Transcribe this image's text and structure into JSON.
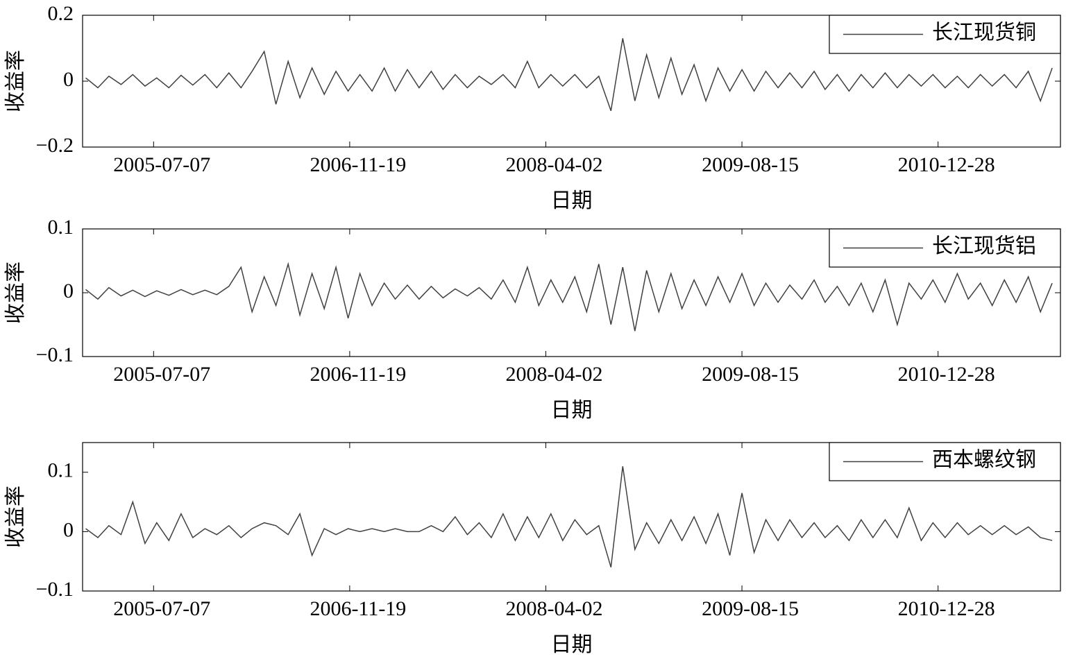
{
  "chart_data": [
    {
      "type": "line",
      "xlabel": "日期",
      "ylabel": "收益率",
      "legend": "upper right",
      "xlim": [
        "2005-01-07",
        "2011-11-05"
      ],
      "xticks": [
        "2005-07-07",
        "2006-11-19",
        "2008-04-02",
        "2009-08-15",
        "2010-12-28"
      ],
      "ylim": [
        -0.2,
        0.2
      ],
      "yticks": [
        {
          "value": -0.2,
          "label": "−0.2"
        },
        0,
        0.2
      ],
      "x": [
        "2005-01-15",
        "2005-02-15",
        "2005-03-15",
        "2005-04-15",
        "2005-05-15",
        "2005-06-15",
        "2005-07-15",
        "2005-08-15",
        "2005-09-15",
        "2005-10-15",
        "2005-11-15",
        "2005-12-15",
        "2006-01-15",
        "2006-02-15",
        "2006-03-15",
        "2006-04-15",
        "2006-05-15",
        "2006-06-15",
        "2006-07-15",
        "2006-08-15",
        "2006-09-15",
        "2006-10-15",
        "2006-11-15",
        "2006-12-15",
        "2007-01-15",
        "2007-02-15",
        "2007-03-15",
        "2007-04-15",
        "2007-05-15",
        "2007-06-15",
        "2007-07-15",
        "2007-08-15",
        "2007-09-15",
        "2007-10-15",
        "2007-11-15",
        "2007-12-15",
        "2008-01-15",
        "2008-02-15",
        "2008-03-15",
        "2008-04-15",
        "2008-05-15",
        "2008-06-15",
        "2008-07-15",
        "2008-08-15",
        "2008-09-15",
        "2008-10-15",
        "2008-11-15",
        "2008-12-15",
        "2009-01-15",
        "2009-02-15",
        "2009-03-15",
        "2009-04-15",
        "2009-05-15",
        "2009-06-15",
        "2009-07-15",
        "2009-08-15",
        "2009-09-15",
        "2009-10-15",
        "2009-11-15",
        "2009-12-15",
        "2010-01-15",
        "2010-02-15",
        "2010-03-15",
        "2010-04-15",
        "2010-05-15",
        "2010-06-15",
        "2010-07-15",
        "2010-08-15",
        "2010-09-15",
        "2010-10-15",
        "2010-11-15",
        "2010-12-15",
        "2011-01-15",
        "2011-02-15",
        "2011-03-15",
        "2011-04-15",
        "2011-05-15",
        "2011-06-15",
        "2011-07-15",
        "2011-08-15",
        "2011-09-15",
        "2011-10-15"
      ],
      "series": [
        {
          "name": "长江现货铜",
          "color": "#404040",
          "values": [
            0.01,
            -0.02,
            0.015,
            -0.01,
            0.02,
            -0.015,
            0.01,
            -0.02,
            0.018,
            -0.012,
            0.02,
            -0.02,
            0.025,
            -0.02,
            0.03,
            0.09,
            -0.07,
            0.06,
            -0.05,
            0.04,
            -0.04,
            0.03,
            -0.03,
            0.02,
            -0.03,
            0.04,
            -0.03,
            0.035,
            -0.02,
            0.03,
            -0.025,
            0.02,
            -0.02,
            0.015,
            -0.01,
            0.02,
            -0.02,
            0.06,
            -0.02,
            0.02,
            -0.015,
            0.02,
            -0.02,
            0.015,
            -0.09,
            0.13,
            -0.06,
            0.08,
            -0.05,
            0.07,
            -0.04,
            0.05,
            -0.06,
            0.04,
            -0.03,
            0.035,
            -0.03,
            0.03,
            -0.02,
            0.025,
            -0.02,
            0.03,
            -0.025,
            0.02,
            -0.03,
            0.02,
            -0.02,
            0.025,
            -0.02,
            0.02,
            -0.015,
            0.02,
            -0.02,
            0.015,
            -0.02,
            0.02,
            -0.015,
            0.02,
            -0.02,
            0.03,
            -0.06,
            0.04
          ]
        }
      ]
    },
    {
      "type": "line",
      "xlabel": "日期",
      "ylabel": "收益率",
      "legend": "upper right",
      "xlim": [
        "2005-01-07",
        "2011-11-05"
      ],
      "xticks": [
        "2005-07-07",
        "2006-11-19",
        "2008-04-02",
        "2009-08-15",
        "2010-12-28"
      ],
      "ylim": [
        -0.1,
        0.1
      ],
      "yticks": [
        {
          "value": -0.1,
          "label": "−0.1"
        },
        0,
        0.1
      ],
      "x": [
        "2005-01-15",
        "2005-02-15",
        "2005-03-15",
        "2005-04-15",
        "2005-05-15",
        "2005-06-15",
        "2005-07-15",
        "2005-08-15",
        "2005-09-15",
        "2005-10-15",
        "2005-11-15",
        "2005-12-15",
        "2006-01-15",
        "2006-02-15",
        "2006-03-15",
        "2006-04-15",
        "2006-05-15",
        "2006-06-15",
        "2006-07-15",
        "2006-08-15",
        "2006-09-15",
        "2006-10-15",
        "2006-11-15",
        "2006-12-15",
        "2007-01-15",
        "2007-02-15",
        "2007-03-15",
        "2007-04-15",
        "2007-05-15",
        "2007-06-15",
        "2007-07-15",
        "2007-08-15",
        "2007-09-15",
        "2007-10-15",
        "2007-11-15",
        "2007-12-15",
        "2008-01-15",
        "2008-02-15",
        "2008-03-15",
        "2008-04-15",
        "2008-05-15",
        "2008-06-15",
        "2008-07-15",
        "2008-08-15",
        "2008-09-15",
        "2008-10-15",
        "2008-11-15",
        "2008-12-15",
        "2009-01-15",
        "2009-02-15",
        "2009-03-15",
        "2009-04-15",
        "2009-05-15",
        "2009-06-15",
        "2009-07-15",
        "2009-08-15",
        "2009-09-15",
        "2009-10-15",
        "2009-11-15",
        "2009-12-15",
        "2010-01-15",
        "2010-02-15",
        "2010-03-15",
        "2010-04-15",
        "2010-05-15",
        "2010-06-15",
        "2010-07-15",
        "2010-08-15",
        "2010-09-15",
        "2010-10-15",
        "2010-11-15",
        "2010-12-15",
        "2011-01-15",
        "2011-02-15",
        "2011-03-15",
        "2011-04-15",
        "2011-05-15",
        "2011-06-15",
        "2011-07-15",
        "2011-08-15",
        "2011-09-15",
        "2011-10-15"
      ],
      "series": [
        {
          "name": "长江现货铝",
          "color": "#404040",
          "values": [
            0.005,
            -0.01,
            0.008,
            -0.005,
            0.004,
            -0.006,
            0.003,
            -0.004,
            0.005,
            -0.003,
            0.004,
            -0.003,
            0.01,
            0.04,
            -0.03,
            0.025,
            -0.02,
            0.045,
            -0.035,
            0.03,
            -0.025,
            0.04,
            -0.04,
            0.03,
            -0.02,
            0.015,
            -0.01,
            0.012,
            -0.01,
            0.01,
            -0.008,
            0.006,
            -0.005,
            0.008,
            -0.01,
            0.02,
            -0.015,
            0.04,
            -0.02,
            0.02,
            -0.015,
            0.025,
            -0.03,
            0.045,
            -0.05,
            0.04,
            -0.06,
            0.035,
            -0.03,
            0.03,
            -0.025,
            0.02,
            -0.02,
            0.025,
            -0.015,
            0.03,
            -0.02,
            0.015,
            -0.015,
            0.012,
            -0.01,
            0.02,
            -0.015,
            0.01,
            -0.02,
            0.015,
            -0.03,
            0.02,
            -0.05,
            0.015,
            -0.01,
            0.02,
            -0.015,
            0.03,
            -0.01,
            0.015,
            -0.02,
            0.02,
            -0.015,
            0.025,
            -0.03,
            0.015
          ]
        }
      ]
    },
    {
      "type": "line",
      "xlabel": "日期",
      "ylabel": "收益率",
      "legend": "upper right",
      "xlim": [
        "2005-01-07",
        "2011-11-05"
      ],
      "xticks": [
        "2005-07-07",
        "2006-11-19",
        "2008-04-02",
        "2009-08-15",
        "2010-12-28"
      ],
      "ylim": [
        -0.1,
        0.15
      ],
      "yticks": [
        {
          "value": -0.1,
          "label": "−0.1"
        },
        0,
        0.1
      ],
      "x": [
        "2005-01-15",
        "2005-02-15",
        "2005-03-15",
        "2005-04-15",
        "2005-05-15",
        "2005-06-15",
        "2005-07-15",
        "2005-08-15",
        "2005-09-15",
        "2005-10-15",
        "2005-11-15",
        "2005-12-15",
        "2006-01-15",
        "2006-02-15",
        "2006-03-15",
        "2006-04-15",
        "2006-05-15",
        "2006-06-15",
        "2006-07-15",
        "2006-08-15",
        "2006-09-15",
        "2006-10-15",
        "2006-11-15",
        "2006-12-15",
        "2007-01-15",
        "2007-02-15",
        "2007-03-15",
        "2007-04-15",
        "2007-05-15",
        "2007-06-15",
        "2007-07-15",
        "2007-08-15",
        "2007-09-15",
        "2007-10-15",
        "2007-11-15",
        "2007-12-15",
        "2008-01-15",
        "2008-02-15",
        "2008-03-15",
        "2008-04-15",
        "2008-05-15",
        "2008-06-15",
        "2008-07-15",
        "2008-08-15",
        "2008-09-15",
        "2008-10-15",
        "2008-11-15",
        "2008-12-15",
        "2009-01-15",
        "2009-02-15",
        "2009-03-15",
        "2009-04-15",
        "2009-05-15",
        "2009-06-15",
        "2009-07-15",
        "2009-08-15",
        "2009-09-15",
        "2009-10-15",
        "2009-11-15",
        "2009-12-15",
        "2010-01-15",
        "2010-02-15",
        "2010-03-15",
        "2010-04-15",
        "2010-05-15",
        "2010-06-15",
        "2010-07-15",
        "2010-08-15",
        "2010-09-15",
        "2010-10-15",
        "2010-11-15",
        "2010-12-15",
        "2011-01-15",
        "2011-02-15",
        "2011-03-15",
        "2011-04-15",
        "2011-05-15",
        "2011-06-15",
        "2011-07-15",
        "2011-08-15",
        "2011-09-15",
        "2011-10-15"
      ],
      "series": [
        {
          "name": "西本螺纹钢",
          "color": "#404040",
          "values": [
            0.005,
            -0.01,
            0.01,
            -0.005,
            0.05,
            -0.02,
            0.015,
            -0.015,
            0.03,
            -0.01,
            0.005,
            -0.005,
            0.01,
            -0.01,
            0.005,
            0.015,
            0.01,
            -0.005,
            0.03,
            -0.04,
            0.005,
            -0.005,
            0.005,
            0,
            0.005,
            0,
            0.005,
            0,
            0,
            0.01,
            0,
            0.025,
            -0.005,
            0.015,
            -0.01,
            0.03,
            -0.015,
            0.025,
            -0.01,
            0.03,
            -0.015,
            0.02,
            -0.005,
            0.01,
            -0.06,
            0.11,
            -0.03,
            0.015,
            -0.02,
            0.02,
            -0.015,
            0.025,
            -0.02,
            0.03,
            -0.04,
            0.065,
            -0.035,
            0.02,
            -0.015,
            0.02,
            -0.01,
            0.015,
            -0.01,
            0.01,
            -0.015,
            0.02,
            -0.01,
            0.02,
            -0.01,
            0.04,
            -0.015,
            0.015,
            -0.01,
            0.015,
            -0.005,
            0.01,
            -0.005,
            0.01,
            -0.005,
            0.008,
            -0.01,
            -0.015
          ]
        }
      ]
    }
  ]
}
